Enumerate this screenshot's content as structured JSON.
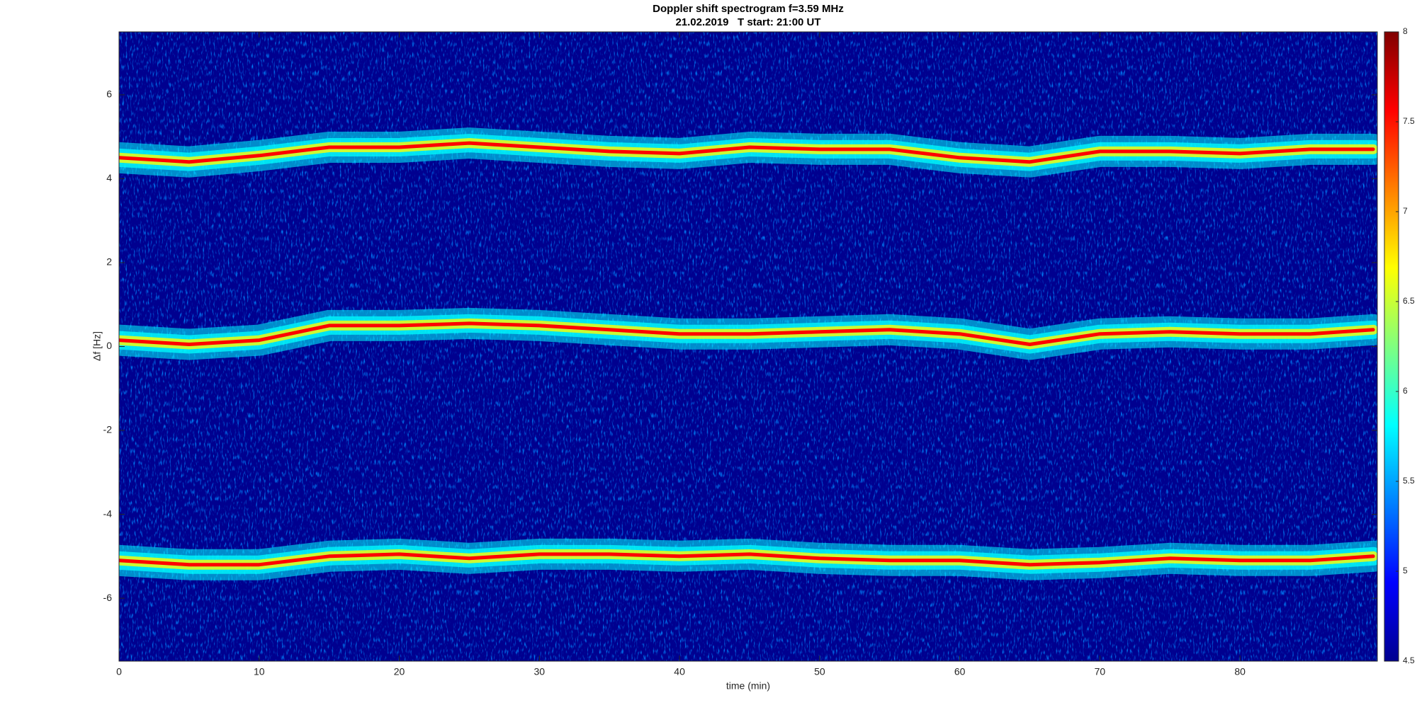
{
  "chart_data": {
    "type": "spectrogram",
    "title": "Doppler shift spectrogram f=3.59 MHz",
    "subtitle": "21.02.2019   T start: 21:00 UT",
    "x_label": "time (min)",
    "y_label": "Δf [Hz]",
    "xlim": [
      0,
      89.8
    ],
    "ylim": [
      -7.5,
      7.5
    ],
    "xticks": [
      0,
      10,
      20,
      30,
      40,
      50,
      60,
      70,
      80
    ],
    "yticks": [
      -6,
      -4,
      -2,
      0,
      2,
      4,
      6
    ],
    "colormap": "jet",
    "clim": [
      4.5,
      8
    ],
    "cticks": [
      4.5,
      5,
      5.5,
      6,
      6.5,
      7,
      7.5,
      8
    ],
    "x": [
      0,
      5,
      10,
      15,
      20,
      25,
      30,
      35,
      40,
      45,
      50,
      55,
      60,
      65,
      70,
      75,
      80,
      85,
      89.5
    ],
    "series": [
      {
        "color": "#ff0000",
        "values": [
          4.5,
          4.4,
          4.55,
          4.75,
          4.75,
          4.85,
          4.75,
          4.65,
          4.6,
          4.75,
          4.7,
          4.7,
          4.5,
          4.4,
          4.65,
          4.65,
          4.6,
          4.7,
          4.7
        ]
      },
      {
        "color": "#ff0000",
        "values": [
          0.15,
          0.05,
          0.15,
          0.5,
          0.5,
          0.55,
          0.5,
          0.4,
          0.3,
          0.3,
          0.35,
          0.4,
          0.3,
          0.05,
          0.3,
          0.35,
          0.3,
          0.3,
          0.4
        ]
      },
      {
        "color": "#ff0000",
        "values": [
          -5.1,
          -5.2,
          -5.2,
          -5.0,
          -4.95,
          -5.05,
          -4.95,
          -4.95,
          -5.0,
          -4.95,
          -5.05,
          -5.1,
          -5.1,
          -5.2,
          -5.15,
          -5.05,
          -5.1,
          -5.1,
          -5.0
        ]
      }
    ]
  }
}
